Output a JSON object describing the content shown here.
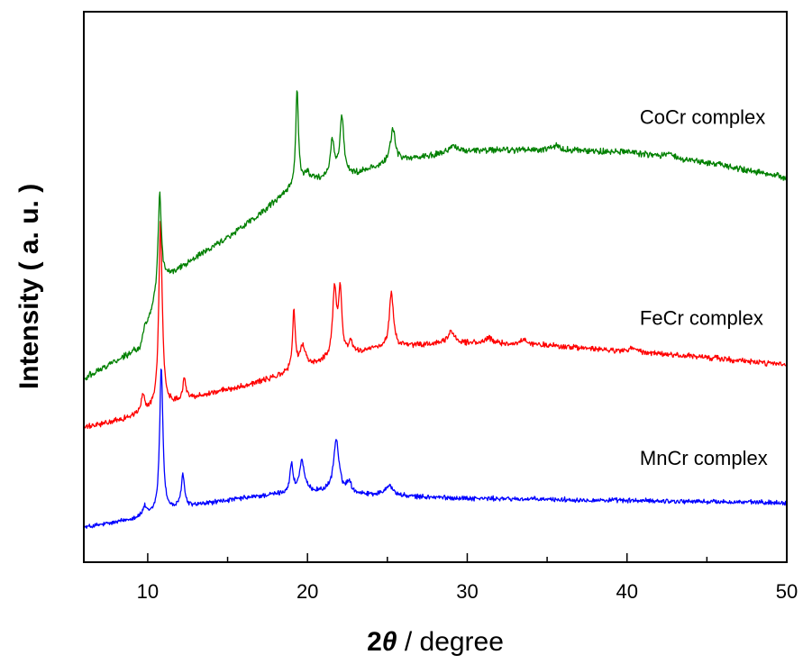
{
  "chart_data": {
    "type": "line",
    "xlabel_parts": {
      "symbol": "2",
      "theta": "θ",
      "rest": " / degree"
    },
    "ylabel": "Intensity ( a. u. )",
    "xlim": [
      6,
      50
    ],
    "ylim": [
      0,
      100
    ],
    "x_ticks": [
      10,
      20,
      30,
      40,
      50
    ],
    "x_tick_labels": [
      "10",
      "20",
      "30",
      "40",
      "50"
    ],
    "y_ticks_shown": false,
    "grid": false,
    "legend": "none",
    "series": [
      {
        "name": "MnCr complex",
        "color": "#0000ff",
        "label_x": 40.8,
        "label_y": 17.7,
        "noise": 0.35,
        "baseline": [
          [
            6,
            6.3
          ],
          [
            8,
            7.2
          ],
          [
            10,
            8.5
          ],
          [
            12,
            9.8
          ],
          [
            14,
            10.8
          ],
          [
            16,
            11.6
          ],
          [
            18,
            12.3
          ],
          [
            20,
            12.8
          ],
          [
            22,
            12.7
          ],
          [
            25,
            12.0
          ],
          [
            30,
            11.6
          ],
          [
            35,
            11.4
          ],
          [
            40,
            11.2
          ],
          [
            45,
            11.0
          ],
          [
            50,
            10.8
          ]
        ],
        "peaks": [
          [
            9.8,
            1.6,
            0.12
          ],
          [
            10.85,
            26.5,
            0.12
          ],
          [
            12.2,
            6.0,
            0.12
          ],
          [
            19.0,
            5.0,
            0.12
          ],
          [
            19.65,
            5.6,
            0.18
          ],
          [
            21.8,
            9.5,
            0.2
          ],
          [
            22.6,
            2.0,
            0.15
          ],
          [
            25.1,
            2.0,
            0.3
          ]
        ]
      },
      {
        "name": "FeCr complex",
        "color": "#ff0000",
        "label_x": 40.8,
        "label_y": 43.1,
        "noise": 0.4,
        "baseline": [
          [
            6,
            24.4
          ],
          [
            8,
            25.6
          ],
          [
            10,
            27.3
          ],
          [
            12,
            29.2
          ],
          [
            14,
            30.7
          ],
          [
            16,
            32.0
          ],
          [
            18,
            33.6
          ],
          [
            20,
            35.6
          ],
          [
            22,
            37.1
          ],
          [
            24,
            38.6
          ],
          [
            26,
            39.2
          ],
          [
            28,
            39.6
          ],
          [
            30,
            39.8
          ],
          [
            35,
            39.4
          ],
          [
            40,
            38.2
          ],
          [
            45,
            37.2
          ],
          [
            50,
            35.8
          ]
        ],
        "peaks": [
          [
            9.7,
            3.2,
            0.12
          ],
          [
            10.8,
            33.5,
            0.13
          ],
          [
            12.3,
            3.8,
            0.12
          ],
          [
            19.15,
            10.8,
            0.1
          ],
          [
            19.7,
            3.8,
            0.2
          ],
          [
            21.7,
            12.5,
            0.15
          ],
          [
            22.05,
            11.6,
            0.12
          ],
          [
            22.7,
            2.2,
            0.15
          ],
          [
            25.25,
            10.2,
            0.15
          ],
          [
            29.0,
            2.2,
            0.25
          ],
          [
            31.4,
            0.9,
            0.3
          ],
          [
            33.5,
            0.8,
            0.3
          ],
          [
            40.4,
            0.8,
            0.3
          ]
        ]
      },
      {
        "name": "CoCr complex",
        "color": "#008000",
        "label_x": 40.8,
        "label_y": 79.6,
        "noise": 0.45,
        "baseline": [
          [
            6,
            33.4
          ],
          [
            8,
            36.6
          ],
          [
            9.5,
            38.8
          ],
          [
            11,
            51.5
          ],
          [
            13,
            55.3
          ],
          [
            15,
            59.0
          ],
          [
            17,
            63.1
          ],
          [
            18.5,
            66.7
          ],
          [
            19.5,
            68.5
          ],
          [
            21,
            69.5
          ],
          [
            23,
            70.5
          ],
          [
            25,
            72.5
          ],
          [
            27,
            73.5
          ],
          [
            29,
            74.6
          ],
          [
            31,
            74.8
          ],
          [
            35,
            74.9
          ],
          [
            40,
            74.5
          ],
          [
            45,
            72.6
          ],
          [
            50,
            69.8
          ]
        ],
        "peaks": [
          [
            9.85,
            1.2,
            0.15
          ],
          [
            10.75,
            17.5,
            0.12
          ],
          [
            19.35,
            17.5,
            0.1
          ],
          [
            20.0,
            1.8,
            0.25
          ],
          [
            21.55,
            6.5,
            0.15
          ],
          [
            22.15,
            10.8,
            0.15
          ],
          [
            25.35,
            6.2,
            0.18
          ],
          [
            29.1,
            1.4,
            0.2
          ],
          [
            35.6,
            0.8,
            0.3
          ],
          [
            42.7,
            1.0,
            0.3
          ]
        ]
      }
    ]
  }
}
